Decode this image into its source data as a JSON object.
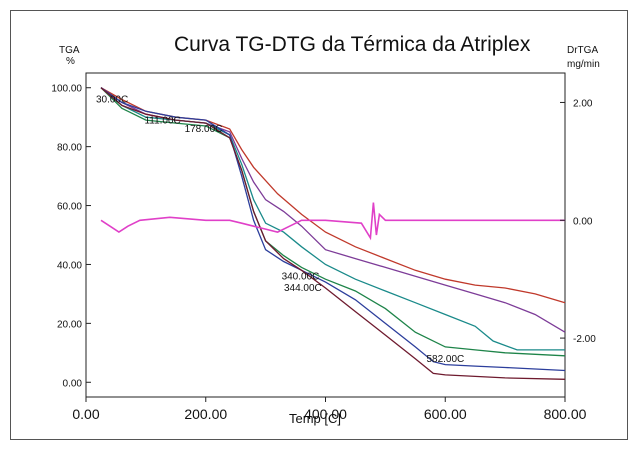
{
  "chart_data": {
    "type": "line",
    "title": "Curva TG-DTG da Térmica da Atriplex",
    "xlabel": "Temp  [C]",
    "ylabel_left_top": "TGA",
    "ylabel_left_unit": "%",
    "ylabel_right_top": "DrTGA",
    "ylabel_right_unit": "mg/min",
    "xlim": [
      0,
      800
    ],
    "ylim": [
      -5,
      105
    ],
    "y2lim": [
      -3.0,
      2.5
    ],
    "x_ticks": [
      "0.00",
      "200.00",
      "400.00",
      "600.00",
      "800.00"
    ],
    "x_tick_values": [
      0,
      200,
      400,
      600,
      800
    ],
    "y_ticks": [
      "0.00",
      "20.00",
      "40.00",
      "60.00",
      "80.00",
      "100.00"
    ],
    "y_tick_values": [
      0,
      20,
      40,
      60,
      80,
      100
    ],
    "y2_ticks": [
      "2.00",
      "0.00",
      "-2.00"
    ],
    "y2_tick_values": [
      2.0,
      0.0,
      -2.0
    ],
    "grid": false,
    "annotations": [
      {
        "text": "30.00C",
        "x": 30,
        "y": 99
      },
      {
        "text": "111.00C",
        "x": 111,
        "y": 92
      },
      {
        "text": "178.00C",
        "x": 178,
        "y": 89
      },
      {
        "text": "340.00C",
        "x": 340,
        "y": 39
      },
      {
        "text": "344.00C",
        "x": 344,
        "y": 35
      },
      {
        "text": "582.00C",
        "x": 582,
        "y": 11
      }
    ],
    "series": [
      {
        "color": "#c0392b",
        "axis": "left",
        "points": [
          [
            25,
            100
          ],
          [
            60,
            96
          ],
          [
            100,
            92
          ],
          [
            150,
            90
          ],
          [
            200,
            89
          ],
          [
            240,
            86
          ],
          [
            260,
            79
          ],
          [
            280,
            73
          ],
          [
            320,
            64
          ],
          [
            360,
            57
          ],
          [
            400,
            51
          ],
          [
            450,
            46
          ],
          [
            500,
            42
          ],
          [
            550,
            38
          ],
          [
            600,
            35
          ],
          [
            650,
            33
          ],
          [
            700,
            32
          ],
          [
            750,
            30
          ],
          [
            800,
            27
          ]
        ]
      },
      {
        "color": "#7d3c98",
        "axis": "left",
        "points": [
          [
            25,
            100
          ],
          [
            60,
            95
          ],
          [
            100,
            91
          ],
          [
            150,
            89
          ],
          [
            200,
            88
          ],
          [
            240,
            85
          ],
          [
            260,
            76
          ],
          [
            280,
            68
          ],
          [
            300,
            62
          ],
          [
            330,
            58
          ],
          [
            360,
            53
          ],
          [
            400,
            45
          ],
          [
            450,
            42
          ],
          [
            500,
            39
          ],
          [
            550,
            36
          ],
          [
            600,
            33
          ],
          [
            650,
            30
          ],
          [
            700,
            27
          ],
          [
            750,
            23
          ],
          [
            800,
            17
          ]
        ]
      },
      {
        "color": "#1a8a8a",
        "axis": "left",
        "points": [
          [
            25,
            100
          ],
          [
            60,
            94
          ],
          [
            100,
            90
          ],
          [
            150,
            89
          ],
          [
            200,
            88
          ],
          [
            240,
            84
          ],
          [
            260,
            74
          ],
          [
            280,
            62
          ],
          [
            300,
            54
          ],
          [
            330,
            51
          ],
          [
            360,
            46
          ],
          [
            400,
            40
          ],
          [
            450,
            35
          ],
          [
            500,
            31
          ],
          [
            550,
            27
          ],
          [
            600,
            23
          ],
          [
            650,
            19
          ],
          [
            680,
            14
          ],
          [
            720,
            11
          ],
          [
            800,
            11
          ]
        ]
      },
      {
        "color": "#1e8449",
        "axis": "left",
        "points": [
          [
            25,
            100
          ],
          [
            60,
            93
          ],
          [
            100,
            89
          ],
          [
            150,
            88
          ],
          [
            200,
            87
          ],
          [
            240,
            83
          ],
          [
            260,
            72
          ],
          [
            280,
            58
          ],
          [
            300,
            48
          ],
          [
            330,
            43
          ],
          [
            360,
            39
          ],
          [
            400,
            35
          ],
          [
            450,
            31
          ],
          [
            500,
            25
          ],
          [
            550,
            17
          ],
          [
            600,
            12
          ],
          [
            650,
            11
          ],
          [
            700,
            10
          ],
          [
            800,
            9
          ]
        ]
      },
      {
        "color": "#2c3e9c",
        "axis": "left",
        "points": [
          [
            25,
            100
          ],
          [
            60,
            95
          ],
          [
            100,
            92
          ],
          [
            150,
            90
          ],
          [
            200,
            89
          ],
          [
            240,
            84
          ],
          [
            260,
            70
          ],
          [
            280,
            55
          ],
          [
            300,
            45
          ],
          [
            330,
            41
          ],
          [
            360,
            38
          ],
          [
            400,
            34
          ],
          [
            450,
            28
          ],
          [
            500,
            20
          ],
          [
            550,
            12
          ],
          [
            580,
            7
          ],
          [
            600,
            6
          ],
          [
            650,
            5.5
          ],
          [
            700,
            5
          ],
          [
            800,
            4
          ]
        ]
      },
      {
        "color": "#6e1a2e",
        "axis": "left",
        "points": [
          [
            25,
            100
          ],
          [
            60,
            94
          ],
          [
            100,
            91
          ],
          [
            150,
            89
          ],
          [
            200,
            88
          ],
          [
            240,
            83
          ],
          [
            260,
            72
          ],
          [
            280,
            58
          ],
          [
            300,
            48
          ],
          [
            330,
            42
          ],
          [
            360,
            38
          ],
          [
            400,
            32
          ],
          [
            450,
            24
          ],
          [
            500,
            16
          ],
          [
            550,
            8
          ],
          [
            580,
            3
          ],
          [
            600,
            2.5
          ],
          [
            650,
            2
          ],
          [
            700,
            1.5
          ],
          [
            800,
            1
          ]
        ]
      },
      {
        "color": "#e040c8",
        "axis": "right",
        "points": [
          [
            25,
            0.0
          ],
          [
            40,
            -0.1
          ],
          [
            55,
            -0.2
          ],
          [
            70,
            -0.1
          ],
          [
            90,
            0.0
          ],
          [
            140,
            0.05
          ],
          [
            200,
            0.0
          ],
          [
            240,
            0.0
          ],
          [
            260,
            -0.05
          ],
          [
            280,
            -0.1
          ],
          [
            300,
            -0.15
          ],
          [
            320,
            -0.2
          ],
          [
            340,
            -0.1
          ],
          [
            360,
            0.0
          ],
          [
            400,
            0.0
          ],
          [
            460,
            -0.05
          ],
          [
            475,
            -0.3
          ],
          [
            480,
            0.3
          ],
          [
            485,
            -0.25
          ],
          [
            490,
            0.1
          ],
          [
            500,
            0.0
          ],
          [
            600,
            0.0
          ],
          [
            700,
            0.0
          ],
          [
            800,
            0.0
          ]
        ]
      }
    ]
  }
}
